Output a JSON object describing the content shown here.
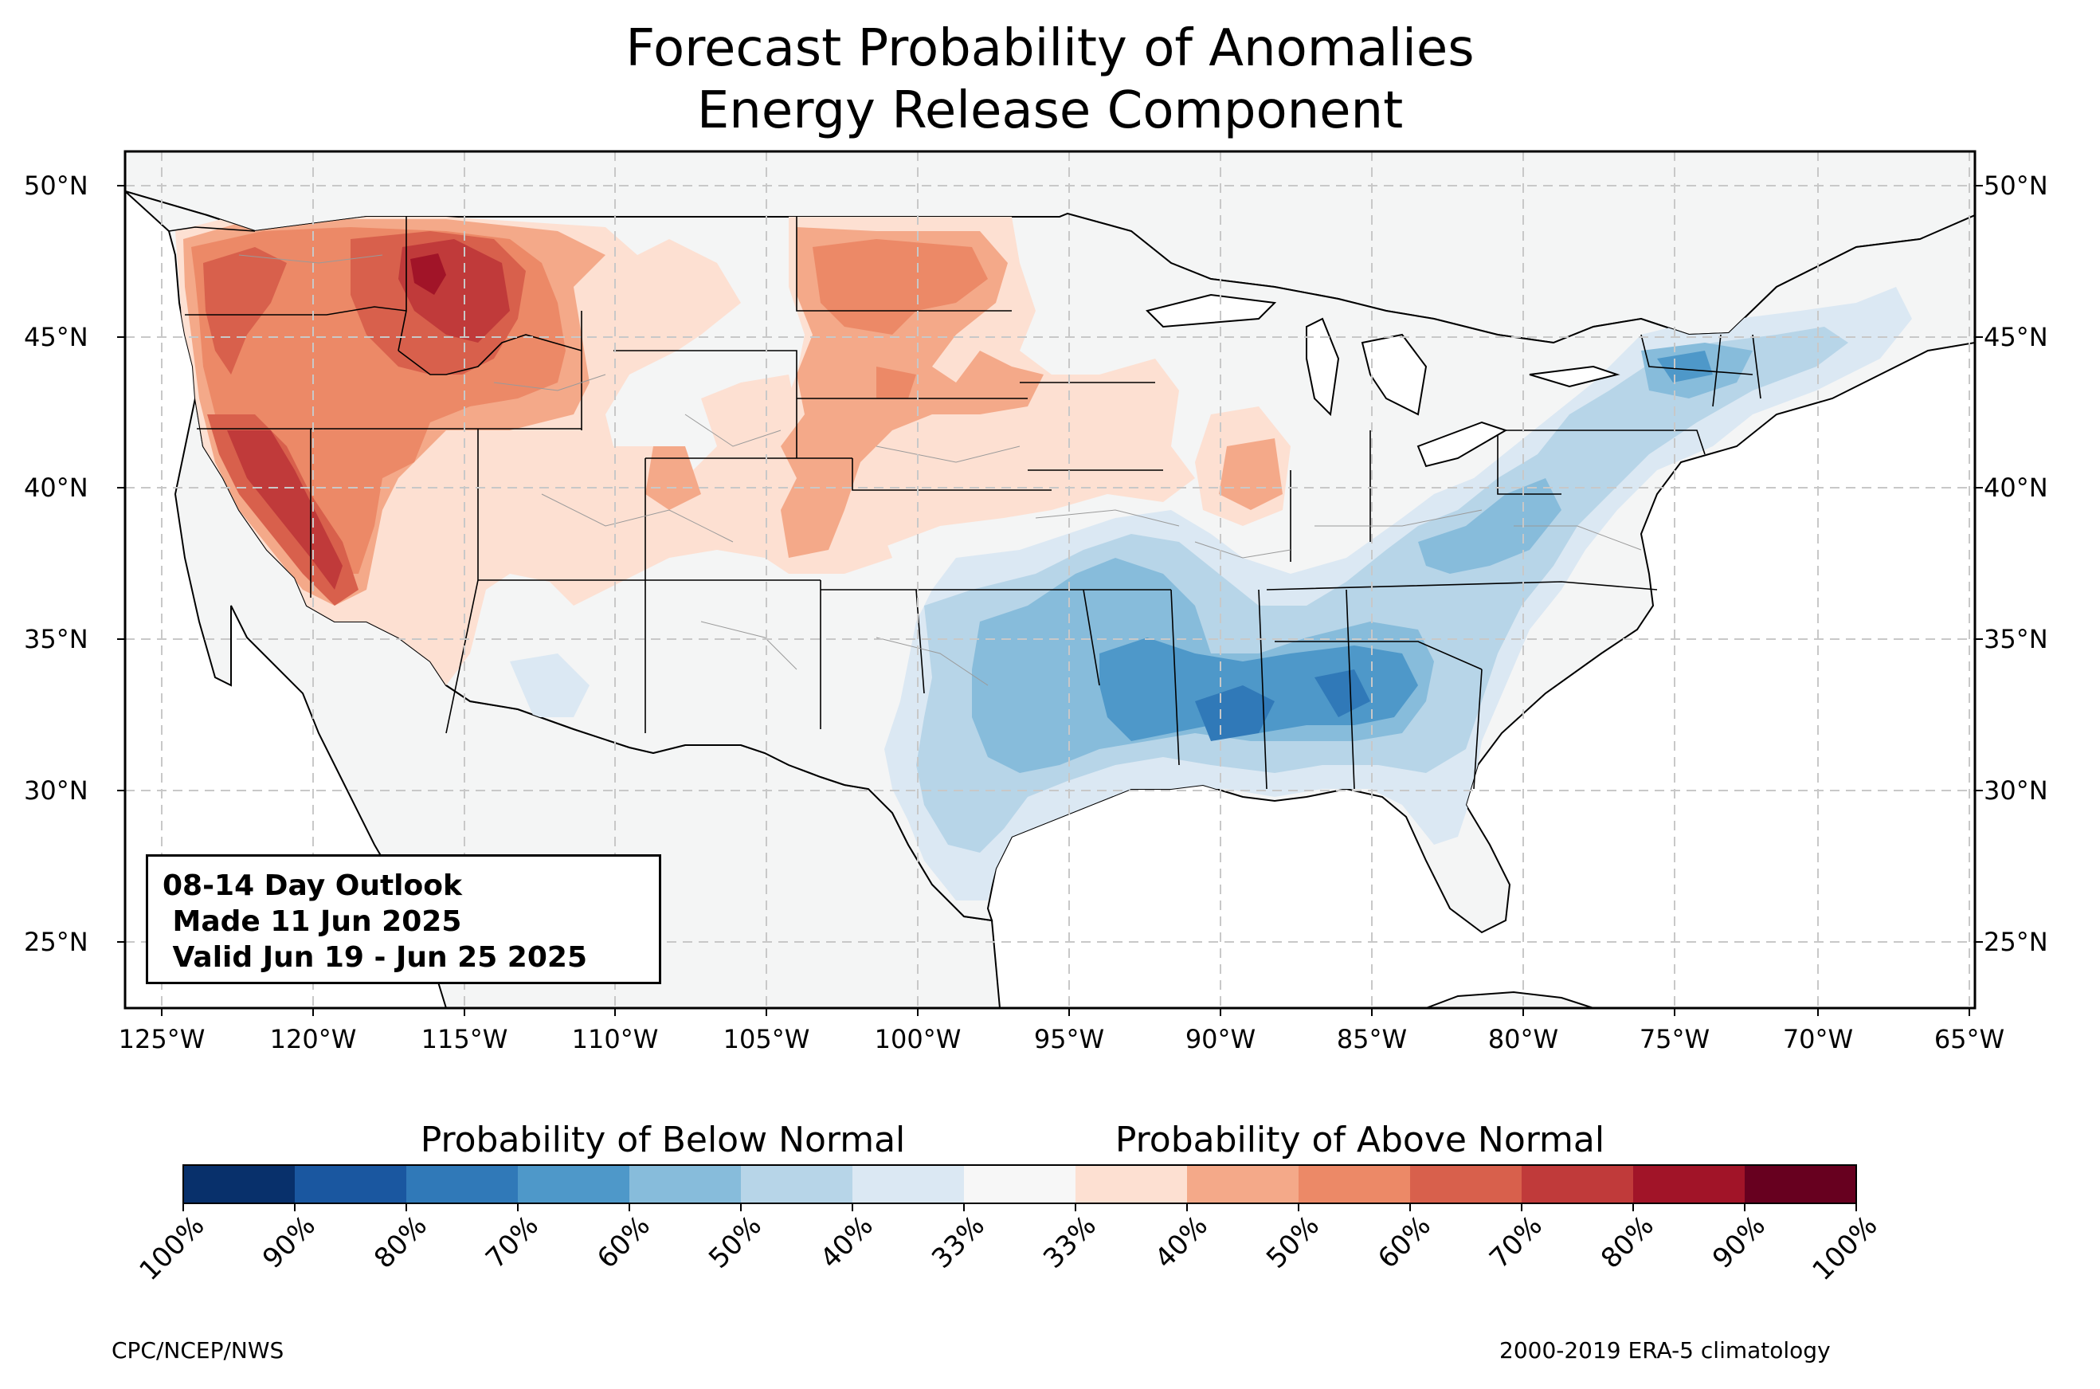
{
  "title_line1": "Forecast Probability of Anomalies",
  "title_line2": "Energy Release Component",
  "map": {
    "lon_ticks": [
      "125°W",
      "120°W",
      "115°W",
      "110°W",
      "105°W",
      "100°W",
      "95°W",
      "90°W",
      "85°W",
      "80°W",
      "75°W",
      "70°W",
      "65°W"
    ],
    "lat_ticks": [
      "50°N",
      "45°N",
      "40°N",
      "35°N",
      "30°N",
      "25°N"
    ],
    "lon_range": [
      -126.3,
      -64.8
    ],
    "lat_range": [
      22.7,
      51.2
    ],
    "grid": true
  },
  "outlook_box": {
    "line1": "08-14 Day Outlook",
    "line2": " Made 11 Jun 2025",
    "line3": " Valid Jun 19 - Jun 25 2025"
  },
  "colorbar": {
    "below_title": "Probability of Below Normal",
    "above_title": "Probability of Above Normal",
    "labels": [
      "100%",
      "90%",
      "80%",
      "70%",
      "60%",
      "50%",
      "40%",
      "33%",
      "33%",
      "40%",
      "50%",
      "60%",
      "70%",
      "80%",
      "90%",
      "100%"
    ],
    "colors": [
      "#08306b",
      "#1a57a0",
      "#3079b8",
      "#4e98c9",
      "#87bcdb",
      "#b7d5e8",
      "#dbe8f3",
      "#f7f7f7",
      "#fde0d2",
      "#f4a989",
      "#ec8967",
      "#d8604c",
      "#c03a3a",
      "#a11428",
      "#67001f"
    ]
  },
  "credits": {
    "left": "CPC/NCEP/NWS",
    "right": "2000-2019 ERA-5 climatology"
  },
  "colors": {
    "land": "#f4f5f5",
    "ocean": "#ffffff",
    "grid": "#c8c8c8"
  }
}
